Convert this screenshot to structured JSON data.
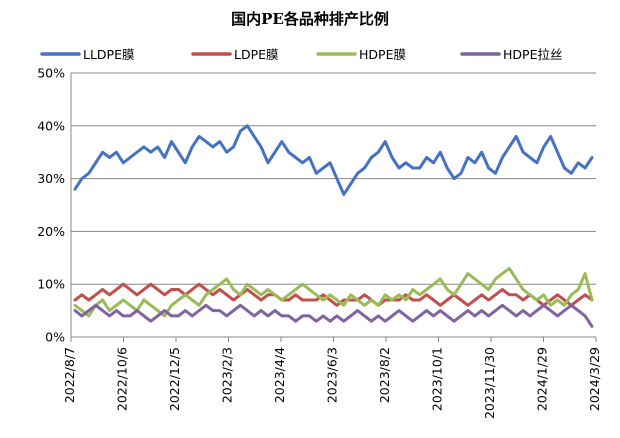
{
  "chart_data": {
    "type": "line",
    "title": "国内PE各品种排产比例",
    "xlabel": "",
    "ylabel": "",
    "y_unit": "%",
    "ylim": [
      0,
      50
    ],
    "y_ticks": [
      "0%",
      "10%",
      "20%",
      "30%",
      "40%",
      "50%"
    ],
    "x_tick_labels": [
      "2022/8/7",
      "2022/10/6",
      "2022/12/5",
      "2023/2/3",
      "2023/4/4",
      "2023/6/3",
      "2023/8/2",
      "2023/10/1",
      "2023/11/30",
      "2024/1/29",
      "2024/3/29"
    ],
    "grid": "horizontal",
    "legend_position": "top",
    "series": [
      {
        "name": "LLDPE膜",
        "color": "#4472C4",
        "values": [
          28,
          30,
          31,
          33,
          35,
          34,
          35,
          33,
          34,
          35,
          36,
          35,
          36,
          34,
          37,
          35,
          33,
          36,
          38,
          37,
          36,
          37,
          35,
          36,
          39,
          40,
          38,
          36,
          33,
          35,
          37,
          35,
          34,
          33,
          34,
          31,
          32,
          33,
          30,
          27,
          29,
          31,
          32,
          34,
          35,
          37,
          34,
          32,
          33,
          32,
          32,
          34,
          33,
          35,
          32,
          30,
          31,
          34,
          33,
          35,
          32,
          31,
          34,
          36,
          38,
          35,
          34,
          33,
          36,
          38,
          35,
          32,
          31,
          33,
          32,
          34
        ]
      },
      {
        "name": "LDPE膜",
        "color": "#C0504D",
        "values": [
          7,
          8,
          7,
          8,
          9,
          8,
          9,
          10,
          9,
          8,
          9,
          10,
          9,
          8,
          9,
          9,
          8,
          9,
          10,
          9,
          8,
          9,
          8,
          7,
          8,
          9,
          8,
          7,
          8,
          8,
          7,
          7,
          8,
          7,
          7,
          7,
          8,
          7,
          6,
          7,
          7,
          7,
          8,
          7,
          6,
          7,
          7,
          7,
          8,
          7,
          7,
          8,
          7,
          6,
          7,
          8,
          7,
          6,
          7,
          8,
          7,
          8,
          9,
          8,
          8,
          7,
          8,
          7,
          6,
          7,
          8,
          7,
          6,
          7,
          8,
          7
        ]
      },
      {
        "name": "HDPE膜",
        "color": "#9BBB59",
        "values": [
          6,
          5,
          4,
          6,
          7,
          5,
          6,
          7,
          6,
          5,
          7,
          6,
          5,
          4,
          6,
          7,
          8,
          7,
          6,
          8,
          9,
          10,
          11,
          9,
          8,
          10,
          9,
          8,
          9,
          8,
          7,
          8,
          9,
          10,
          9,
          8,
          7,
          8,
          7,
          6,
          8,
          7,
          6,
          7,
          6,
          8,
          7,
          8,
          7,
          9,
          8,
          9,
          10,
          11,
          9,
          8,
          10,
          12,
          11,
          10,
          9,
          11,
          12,
          13,
          11,
          9,
          8,
          7,
          8,
          6,
          7,
          6,
          8,
          9,
          12,
          7
        ]
      },
      {
        "name": "HDPE拉丝",
        "color": "#8064A2",
        "values": [
          5,
          4,
          5,
          6,
          5,
          4,
          5,
          4,
          4,
          5,
          4,
          3,
          4,
          5,
          4,
          4,
          5,
          4,
          5,
          6,
          5,
          5,
          4,
          5,
          6,
          5,
          4,
          5,
          4,
          5,
          4,
          4,
          3,
          4,
          4,
          3,
          4,
          3,
          4,
          3,
          4,
          5,
          4,
          3,
          4,
          3,
          4,
          5,
          4,
          3,
          4,
          5,
          4,
          5,
          4,
          3,
          4,
          5,
          4,
          5,
          4,
          5,
          6,
          5,
          4,
          5,
          4,
          5,
          6,
          5,
          4,
          5,
          6,
          5,
          4,
          2
        ]
      }
    ]
  }
}
